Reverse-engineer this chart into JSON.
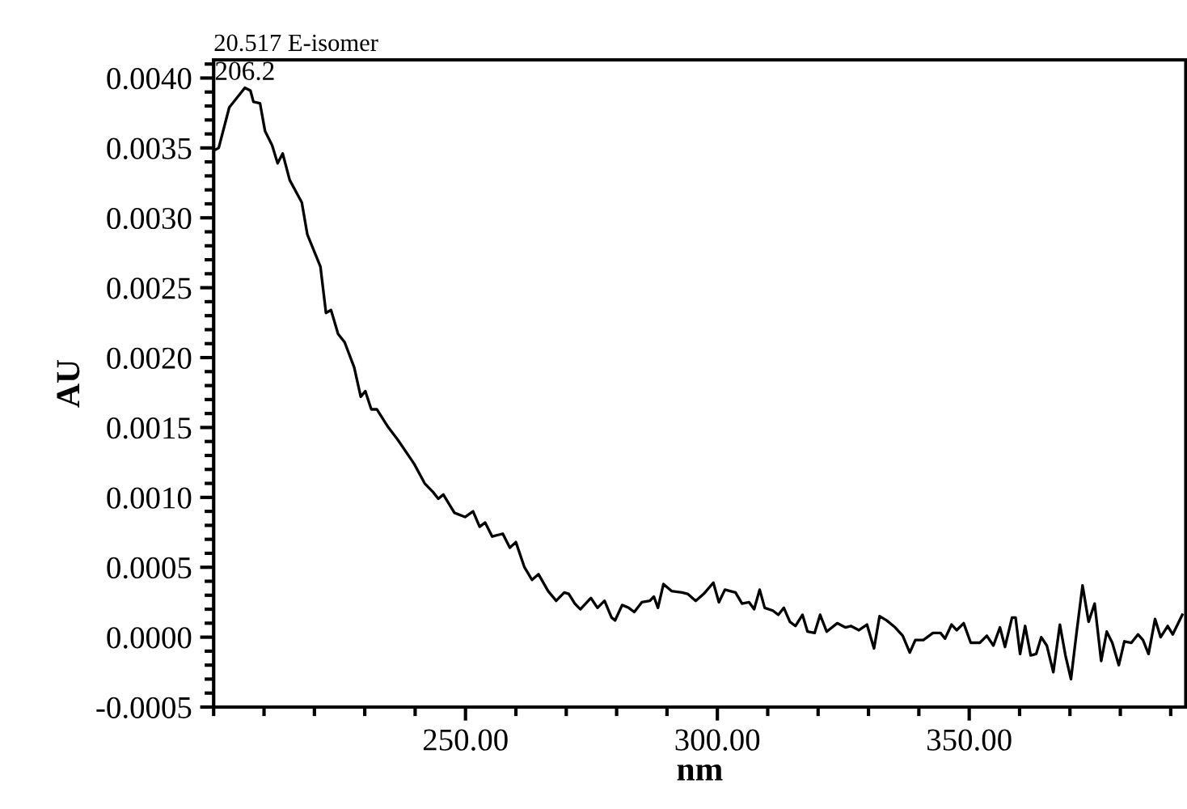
{
  "chart_data": {
    "type": "line",
    "title": "20.517 E-isomer",
    "xlabel": "nm",
    "ylabel": "AU",
    "annotations": [
      {
        "text": "206.2",
        "x": 206.2,
        "y": 0.00393
      }
    ],
    "xlim": [
      200,
      393
    ],
    "ylim": [
      -0.0005,
      0.00413
    ],
    "xticks": [
      {
        "value": 250,
        "label": "250.00"
      },
      {
        "value": 300,
        "label": "300.00"
      },
      {
        "value": 350,
        "label": "350.00"
      }
    ],
    "yticks": [
      {
        "value": -0.0005,
        "label": "-0.0005"
      },
      {
        "value": 0,
        "label": "0.0000"
      },
      {
        "value": 0.0005,
        "label": "0.0005"
      },
      {
        "value": 0.001,
        "label": "0.0010"
      },
      {
        "value": 0.0015,
        "label": "0.0015"
      },
      {
        "value": 0.002,
        "label": "0.0020"
      },
      {
        "value": 0.0025,
        "label": "0.0025"
      },
      {
        "value": 0.003,
        "label": "0.0030"
      },
      {
        "value": 0.0035,
        "label": "0.0035"
      },
      {
        "value": 0.004,
        "label": "0.0040"
      }
    ],
    "grid": false,
    "marker": "none",
    "line_style": "solid",
    "series": [
      {
        "color": "#000000",
        "x": [
          200,
          201,
          203.1,
          206.2,
          207.3,
          207.9,
          209.2,
          210.2,
          211.6,
          212.7,
          213.7,
          215.1,
          217.5,
          218.6,
          221.2,
          222.3,
          223.3,
          224.7,
          226,
          227.9,
          229.2,
          230.1,
          231.3,
          232.4,
          234.5,
          236.6,
          239.8,
          241.9,
          243.5,
          244.6,
          245.6,
          247.8,
          249.9,
          251.5,
          252.8,
          253.9,
          255.3,
          257.4,
          258.8,
          260.0,
          261.7,
          263.2,
          264.5,
          266.4,
          268.0,
          269.6,
          270.5,
          271.7,
          272.8,
          274.9,
          276.2,
          277.6,
          279.0,
          279.7,
          281.1,
          282.4,
          283.5,
          285.0,
          286.6,
          287.4,
          288.2,
          289.3,
          290.9,
          293.0,
          294.1,
          295.7,
          297.3,
          299.2,
          300.3,
          301.5,
          303.6,
          304.9,
          306.3,
          307.3,
          308.4,
          309.4,
          311.0,
          312.1,
          313.2,
          314.4,
          315.5,
          316.9,
          317.9,
          319.3,
          320.4,
          321.7,
          323.8,
          325.4,
          326.5,
          328.1,
          329.7,
          331.1,
          332.2,
          333.6,
          335.3,
          336.8,
          338.2,
          339.3,
          340.9,
          342.8,
          344.3,
          345.2,
          346.5,
          347.5,
          348.9,
          350.3,
          352.1,
          353.5,
          354.8,
          356.1,
          357.1,
          358.5,
          359.2,
          360.1,
          361.1,
          362.2,
          363.3,
          364.3,
          365.4,
          366.7,
          368.0,
          369.1,
          370.2,
          371.2,
          372.5,
          373.7,
          374.9,
          376.2,
          377.3,
          378.4,
          379.7,
          380.8,
          382.2,
          383.5,
          384.5,
          385.6,
          386.9,
          388.0,
          389.4,
          390.4,
          392.3
        ],
        "values": [
          0.00348,
          0.0035,
          0.00379,
          0.00393,
          0.00391,
          0.00383,
          0.00382,
          0.00362,
          0.00352,
          0.00339,
          0.00346,
          0.00327,
          0.00311,
          0.00288,
          0.00265,
          0.00232,
          0.00234,
          0.00217,
          0.00211,
          0.00193,
          0.00172,
          0.00176,
          0.00163,
          0.00163,
          0.00151,
          0.00141,
          0.00124,
          0.0011,
          0.00104,
          0.00099,
          0.00102,
          0.00089,
          0.00086,
          0.0009,
          0.00079,
          0.00082,
          0.00072,
          0.00074,
          0.00064,
          0.00068,
          0.0005,
          0.00041,
          0.00045,
          0.00033,
          0.00026,
          0.00032,
          0.00031,
          0.00024,
          0.0002,
          0.00028,
          0.00021,
          0.00026,
          0.00014,
          0.00012,
          0.00023,
          0.00021,
          0.00018,
          0.00025,
          0.00026,
          0.00029,
          0.00021,
          0.00038,
          0.00033,
          0.00032,
          0.00031,
          0.00026,
          0.00031,
          0.00039,
          0.00025,
          0.00034,
          0.00032,
          0.00024,
          0.00025,
          0.0002,
          0.00034,
          0.00021,
          0.00019,
          0.00016,
          0.00021,
          0.00011,
          8e-05,
          0.00016,
          4e-05,
          3e-05,
          0.00016,
          4e-05,
          0.0001,
          7e-05,
          8e-05,
          5e-05,
          9e-05,
          -8e-05,
          0.00015,
          0.00012,
          7e-05,
          1e-05,
          -0.00011,
          -2e-05,
          -2e-05,
          3e-05,
          3e-05,
          -1e-05,
          9e-05,
          5e-05,
          0.0001,
          -4e-05,
          -4e-05,
          1e-05,
          -6e-05,
          7e-05,
          -7e-05,
          0.00014,
          0.00014,
          -0.00012,
          8e-05,
          -0.00013,
          -0.00012,
          0.0,
          -6e-05,
          -0.00025,
          9e-05,
          -0.00013,
          -0.0003,
          0.0,
          0.00037,
          0.00011,
          0.00024,
          -0.00017,
          4e-05,
          -4e-05,
          -0.0002,
          -3e-05,
          -4e-05,
          2e-05,
          -2e-05,
          -0.00012,
          0.00013,
          0.0,
          8e-05,
          2e-05,
          0.00016
        ]
      }
    ]
  }
}
